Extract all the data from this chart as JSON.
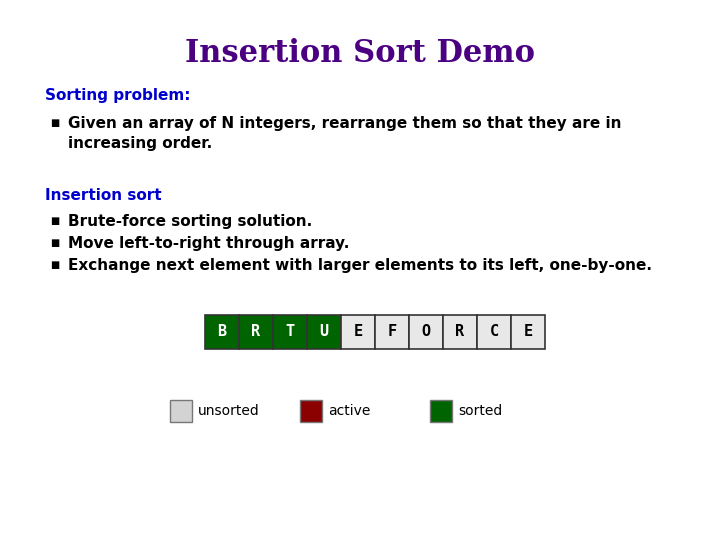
{
  "title": "Insertion Sort Demo",
  "title_color": "#4B0082",
  "title_fontsize": 22,
  "bg_color": "#FFFFFF",
  "section1_label": "Sorting problem:",
  "section1_color": "#0000CD",
  "section1_fontsize": 11,
  "bullet1_line1": "Given an array of N integers, rearrange them so that they are in",
  "bullet1_line2": "    increasing order.",
  "bullet1_color": "#000000",
  "bullet1_fontsize": 11,
  "section2_label": "Insertion sort",
  "section2_color": "#0000CD",
  "section2_fontsize": 11,
  "bullets2": [
    "Brute-force sorting solution.",
    "Move left-to-right through array.",
    "Exchange next element with larger elements to its left, one-by-one."
  ],
  "bullet2_color": "#000000",
  "bullet2_fontsize": 11,
  "array_letters": [
    "B",
    "R",
    "T",
    "U",
    "E",
    "F",
    "O",
    "R",
    "C",
    "E"
  ],
  "array_colors": [
    "#006400",
    "#006400",
    "#006400",
    "#006400",
    "#E8E8E8",
    "#E8E8E8",
    "#E8E8E8",
    "#E8E8E8",
    "#E8E8E8",
    "#E8E8E8"
  ],
  "array_text_colors": [
    "#FFFFFF",
    "#FFFFFF",
    "#FFFFFF",
    "#FFFFFF",
    "#000000",
    "#000000",
    "#000000",
    "#000000",
    "#000000",
    "#000000"
  ],
  "sorted_color": "#006400",
  "active_color": "#8B0000",
  "unsorted_color": "#D3D3D3",
  "array_border_color": "#333333",
  "legend_items": [
    "unsorted",
    "active",
    "sorted"
  ],
  "legend_colors": [
    "#D3D3D3",
    "#8B0000",
    "#006400"
  ],
  "legend_fontsize": 10
}
